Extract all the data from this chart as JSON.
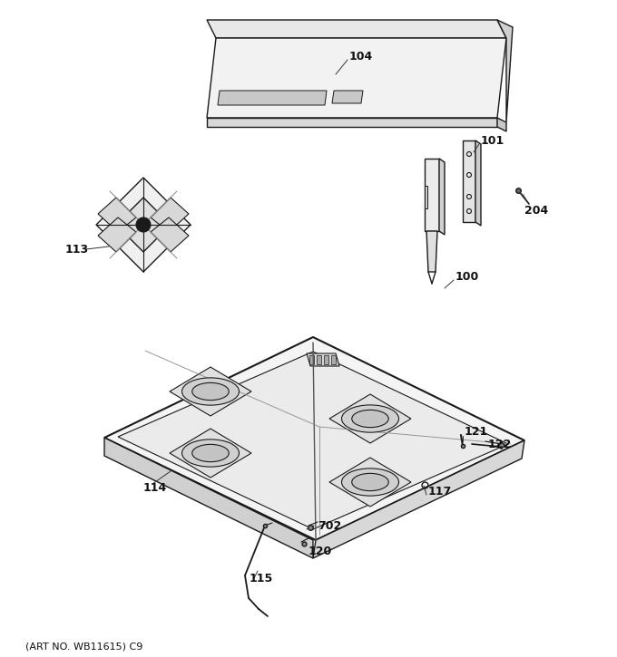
{
  "footer": "(ART NO. WB11615) C9",
  "bg_color": "#ffffff",
  "lc": "#1a1a1a",
  "lw": 1.0
}
